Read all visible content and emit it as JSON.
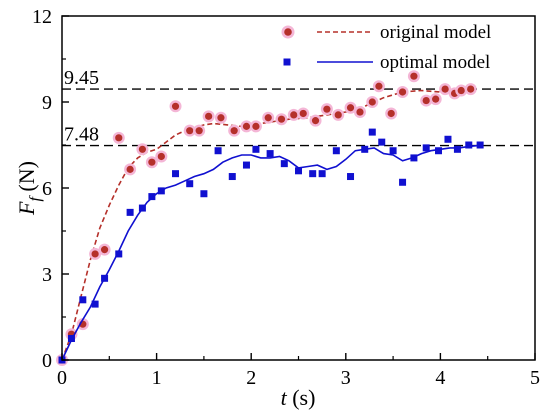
{
  "chart_data": {
    "type": "scatter",
    "xlabel_var": "t",
    "xlabel_unit": " (s)",
    "ylabel_var": "F",
    "ylabel_sub": "f",
    "ylabel_unit": " (N)",
    "xlim": [
      0,
      5
    ],
    "ylim": [
      0,
      12
    ],
    "xticks": [
      0,
      1,
      2,
      3,
      4,
      5
    ],
    "yticks": [
      0,
      3,
      6,
      9,
      12
    ],
    "grid": false,
    "legend_position": "top-right",
    "reference_lines": [
      {
        "y": 9.45,
        "label": "9.45"
      },
      {
        "y": 7.48,
        "label": "7.48"
      }
    ],
    "series": [
      {
        "name": "original model",
        "color": "#b5302a",
        "halo_color": "#f4b6d6",
        "marker": "circle",
        "line_style": "dashed",
        "points": [
          {
            "x": 0.0,
            "y": 0.0
          },
          {
            "x": 0.1,
            "y": 0.9
          },
          {
            "x": 0.22,
            "y": 1.25
          },
          {
            "x": 0.35,
            "y": 3.7
          },
          {
            "x": 0.45,
            "y": 3.85
          },
          {
            "x": 0.6,
            "y": 7.75
          },
          {
            "x": 0.72,
            "y": 6.65
          },
          {
            "x": 0.85,
            "y": 7.35
          },
          {
            "x": 0.95,
            "y": 6.9
          },
          {
            "x": 1.05,
            "y": 7.1
          },
          {
            "x": 1.2,
            "y": 8.85
          },
          {
            "x": 1.35,
            "y": 8.0
          },
          {
            "x": 1.45,
            "y": 8.0
          },
          {
            "x": 1.55,
            "y": 8.5
          },
          {
            "x": 1.68,
            "y": 8.45
          },
          {
            "x": 1.82,
            "y": 8.0
          },
          {
            "x": 1.95,
            "y": 8.15
          },
          {
            "x": 2.05,
            "y": 8.15
          },
          {
            "x": 2.18,
            "y": 8.45
          },
          {
            "x": 2.32,
            "y": 8.4
          },
          {
            "x": 2.45,
            "y": 8.55
          },
          {
            "x": 2.55,
            "y": 8.6
          },
          {
            "x": 2.68,
            "y": 8.35
          },
          {
            "x": 2.8,
            "y": 8.75
          },
          {
            "x": 2.92,
            "y": 8.55
          },
          {
            "x": 3.05,
            "y": 8.8
          },
          {
            "x": 3.15,
            "y": 8.65
          },
          {
            "x": 3.28,
            "y": 9.0
          },
          {
            "x": 3.35,
            "y": 9.55
          },
          {
            "x": 3.48,
            "y": 8.6
          },
          {
            "x": 3.6,
            "y": 9.35
          },
          {
            "x": 3.72,
            "y": 9.9
          },
          {
            "x": 3.85,
            "y": 9.05
          },
          {
            "x": 3.95,
            "y": 9.1
          },
          {
            "x": 4.05,
            "y": 9.45
          },
          {
            "x": 4.15,
            "y": 9.3
          },
          {
            "x": 4.22,
            "y": 9.4
          },
          {
            "x": 4.32,
            "y": 9.45
          }
        ],
        "fit": [
          [
            0.0,
            0.0
          ],
          [
            0.1,
            0.9
          ],
          [
            0.2,
            2.2
          ],
          [
            0.3,
            3.5
          ],
          [
            0.4,
            4.6
          ],
          [
            0.5,
            5.4
          ],
          [
            0.6,
            6.1
          ],
          [
            0.7,
            6.7
          ],
          [
            0.8,
            7.05
          ],
          [
            0.9,
            7.25
          ],
          [
            1.0,
            7.35
          ],
          [
            1.1,
            7.6
          ],
          [
            1.2,
            7.85
          ],
          [
            1.3,
            8.0
          ],
          [
            1.4,
            8.1
          ],
          [
            1.5,
            8.2
          ],
          [
            1.6,
            8.25
          ],
          [
            1.75,
            8.2
          ],
          [
            1.9,
            8.15
          ],
          [
            2.0,
            8.2
          ],
          [
            2.2,
            8.3
          ],
          [
            2.4,
            8.4
          ],
          [
            2.6,
            8.45
          ],
          [
            2.8,
            8.55
          ],
          [
            3.0,
            8.65
          ],
          [
            3.2,
            8.85
          ],
          [
            3.4,
            9.15
          ],
          [
            3.6,
            9.35
          ],
          [
            3.8,
            9.4
          ],
          [
            4.0,
            9.35
          ],
          [
            4.2,
            9.4
          ],
          [
            4.35,
            9.45
          ]
        ]
      },
      {
        "name": "optimal model",
        "color": "#1010d0",
        "marker": "square",
        "line_style": "solid",
        "points": [
          {
            "x": 0.0,
            "y": 0.0
          },
          {
            "x": 0.1,
            "y": 0.75
          },
          {
            "x": 0.22,
            "y": 2.1
          },
          {
            "x": 0.35,
            "y": 1.95
          },
          {
            "x": 0.45,
            "y": 2.85
          },
          {
            "x": 0.6,
            "y": 3.7
          },
          {
            "x": 0.72,
            "y": 5.15
          },
          {
            "x": 0.85,
            "y": 5.3
          },
          {
            "x": 0.95,
            "y": 5.7
          },
          {
            "x": 1.05,
            "y": 5.9
          },
          {
            "x": 1.2,
            "y": 6.5
          },
          {
            "x": 1.35,
            "y": 6.15
          },
          {
            "x": 1.5,
            "y": 5.8
          },
          {
            "x": 1.65,
            "y": 7.3
          },
          {
            "x": 1.8,
            "y": 6.4
          },
          {
            "x": 1.95,
            "y": 6.8
          },
          {
            "x": 2.05,
            "y": 7.35
          },
          {
            "x": 2.2,
            "y": 7.2
          },
          {
            "x": 2.35,
            "y": 6.85
          },
          {
            "x": 2.5,
            "y": 6.6
          },
          {
            "x": 2.65,
            "y": 6.5
          },
          {
            "x": 2.75,
            "y": 6.5
          },
          {
            "x": 2.9,
            "y": 7.3
          },
          {
            "x": 3.05,
            "y": 6.4
          },
          {
            "x": 3.2,
            "y": 7.35
          },
          {
            "x": 3.28,
            "y": 7.95
          },
          {
            "x": 3.38,
            "y": 7.6
          },
          {
            "x": 3.5,
            "y": 7.3
          },
          {
            "x": 3.6,
            "y": 6.2
          },
          {
            "x": 3.72,
            "y": 7.05
          },
          {
            "x": 3.85,
            "y": 7.4
          },
          {
            "x": 3.98,
            "y": 7.3
          },
          {
            "x": 4.08,
            "y": 7.7
          },
          {
            "x": 4.18,
            "y": 7.35
          },
          {
            "x": 4.3,
            "y": 7.5
          },
          {
            "x": 4.42,
            "y": 7.5
          }
        ],
        "fit": [
          [
            0.0,
            0.0
          ],
          [
            0.1,
            0.7
          ],
          [
            0.2,
            1.3
          ],
          [
            0.3,
            1.85
          ],
          [
            0.4,
            2.55
          ],
          [
            0.5,
            3.15
          ],
          [
            0.6,
            3.8
          ],
          [
            0.7,
            4.5
          ],
          [
            0.8,
            5.05
          ],
          [
            0.9,
            5.5
          ],
          [
            1.0,
            5.8
          ],
          [
            1.1,
            6.0
          ],
          [
            1.2,
            6.1
          ],
          [
            1.3,
            6.25
          ],
          [
            1.4,
            6.4
          ],
          [
            1.5,
            6.5
          ],
          [
            1.6,
            6.65
          ],
          [
            1.7,
            6.9
          ],
          [
            1.8,
            7.05
          ],
          [
            1.9,
            7.15
          ],
          [
            2.0,
            7.15
          ],
          [
            2.1,
            7.05
          ],
          [
            2.2,
            7.05
          ],
          [
            2.3,
            7.1
          ],
          [
            2.4,
            6.95
          ],
          [
            2.5,
            6.7
          ],
          [
            2.6,
            6.75
          ],
          [
            2.7,
            6.8
          ],
          [
            2.8,
            6.65
          ],
          [
            2.9,
            6.75
          ],
          [
            3.0,
            7.0
          ],
          [
            3.1,
            7.3
          ],
          [
            3.2,
            7.35
          ],
          [
            3.3,
            7.4
          ],
          [
            3.4,
            7.2
          ],
          [
            3.5,
            7.15
          ],
          [
            3.6,
            6.95
          ],
          [
            3.7,
            7.05
          ],
          [
            3.8,
            7.2
          ],
          [
            3.9,
            7.3
          ],
          [
            4.0,
            7.35
          ],
          [
            4.1,
            7.4
          ],
          [
            4.2,
            7.4
          ],
          [
            4.3,
            7.45
          ],
          [
            4.4,
            7.48
          ]
        ]
      }
    ]
  }
}
